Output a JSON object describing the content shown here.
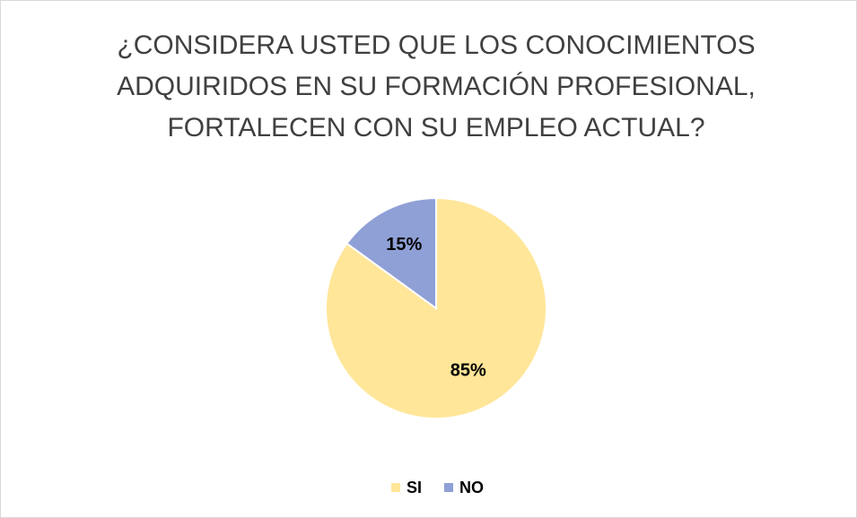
{
  "chart_data": {
    "type": "pie",
    "title": [
      "¿CONSIDERA USTED QUE LOS CONOCIMIENTOS",
      "ADQUIRIDOS EN SU FORMACIÓN PROFESIONAL,",
      "FORTALECEN CON SU EMPLEO ACTUAL?"
    ],
    "categories": [
      "SI",
      "NO"
    ],
    "values": [
      85,
      15
    ],
    "value_labels": [
      "85%",
      "15%"
    ],
    "colors": [
      "#ffe699",
      "#8fa0d6"
    ],
    "legend": "bottom"
  }
}
